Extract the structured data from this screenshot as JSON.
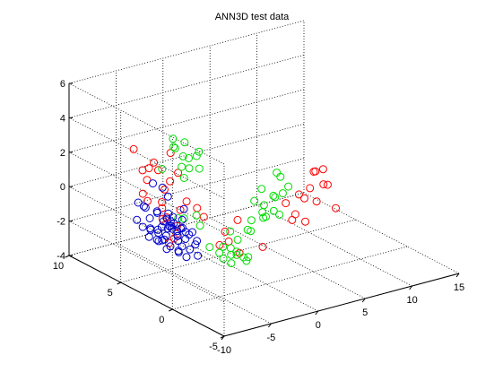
{
  "chart_data": {
    "type": "scatter",
    "title": "ANN3D test data",
    "xlabel": "",
    "ylabel": "",
    "zlabel": "",
    "projection": "3d",
    "grid": true,
    "marker": "open-circle",
    "xlim": [
      -10,
      15
    ],
    "ylim": [
      -5,
      10
    ],
    "zlim": [
      -4,
      6
    ],
    "x_ticks": [
      "-10",
      "-5",
      "0",
      "5",
      "10",
      "15"
    ],
    "y_ticks": [
      "-5",
      "0",
      "5",
      "10"
    ],
    "z_ticks": [
      "-4",
      "-2",
      "0",
      "2",
      "4",
      "6"
    ],
    "series": [
      {
        "color": "#ff0000",
        "points": [
          [
            -5.0,
            5.5,
            -1.2
          ],
          [
            -4.5,
            6.0,
            -0.8
          ],
          [
            -4.0,
            5.0,
            -1.6
          ],
          [
            -3.8,
            6.2,
            -1.5
          ],
          [
            -5.2,
            4.2,
            -1.9
          ],
          [
            -5.5,
            6.5,
            -0.4
          ],
          [
            -6.0,
            6.5,
            0.1
          ],
          [
            -3.0,
            5.6,
            -1.0
          ],
          [
            -3.2,
            3.8,
            -0.3
          ],
          [
            -2.8,
            6.0,
            1.0
          ],
          [
            -5.0,
            7.0,
            0.6
          ],
          [
            -6.5,
            4.2,
            0.4
          ],
          [
            -6.0,
            4.4,
            1.0
          ],
          [
            -6.8,
            5.8,
            1.8
          ],
          [
            -6.2,
            7.2,
            2.5
          ],
          [
            -2.5,
            7.0,
            1.8
          ],
          [
            -4.5,
            6.8,
            1.6
          ],
          [
            -5.2,
            4.6,
            1.3
          ],
          [
            -7.0,
            5.0,
            2.2
          ],
          [
            -3.6,
            7.2,
            0.9
          ],
          [
            -5.8,
            3.4,
            -1.3
          ],
          [
            -4.2,
            3.9,
            0.2
          ],
          [
            -6.4,
            3.6,
            -1.8
          ],
          [
            -1.6,
            4.6,
            -1.3
          ],
          [
            -0.8,
            3.8,
            -2.8
          ],
          [
            0.0,
            4.0,
            -2.2
          ],
          [
            2.0,
            4.6,
            -2.0
          ],
          [
            -0.6,
            3.1,
            -2.4
          ],
          [
            9.0,
            3.6,
            0.1
          ],
          [
            10.0,
            3.6,
            0.1
          ],
          [
            9.6,
            3.2,
            -0.6
          ],
          [
            8.6,
            3.6,
            -0.8
          ],
          [
            8.2,
            2.6,
            -1.2
          ],
          [
            9.8,
            2.2,
            -1.7
          ],
          [
            8.0,
            3.6,
            -1.3
          ],
          [
            7.2,
            3.4,
            -0.9
          ],
          [
            9.4,
            3.8,
            0.0
          ],
          [
            9.6,
            2.8,
            -0.5
          ],
          [
            5.8,
            3.4,
            -1.2
          ],
          [
            6.6,
            3.2,
            -1.9
          ],
          [
            7.0,
            2.6,
            -2.2
          ],
          [
            5.6,
            2.6,
            -1.9
          ],
          [
            0.0,
            2.6,
            -3.0
          ],
          [
            0.6,
            0.9,
            -2.2
          ]
        ]
      },
      {
        "color": "#00dd00",
        "points": [
          [
            -2.0,
            7.0,
            2.0
          ],
          [
            -1.6,
            6.6,
            1.6
          ],
          [
            -1.0,
            6.6,
            1.4
          ],
          [
            -2.4,
            6.8,
            2.2
          ],
          [
            -1.4,
            6.2,
            1.0
          ],
          [
            -2.2,
            6.2,
            1.2
          ],
          [
            -0.6,
            6.2,
            1.6
          ],
          [
            -1.8,
            7.4,
            2.4
          ],
          [
            -3.4,
            7.0,
            1.0
          ],
          [
            -2.6,
            5.6,
            0.8
          ],
          [
            -1.0,
            7.0,
            2.2
          ],
          [
            -1.2,
            5.4,
            1.2
          ],
          [
            -0.8,
            5.8,
            2.0
          ],
          [
            -4.8,
            3.6,
            -0.6
          ],
          [
            -4.2,
            2.6,
            -0.8
          ],
          [
            -5.2,
            3.8,
            -0.6
          ],
          [
            4.4,
            3.0,
            0.9
          ],
          [
            4.8,
            3.0,
            0.6
          ],
          [
            5.2,
            2.6,
            0.1
          ],
          [
            3.6,
            2.6,
            -0.2
          ],
          [
            4.0,
            2.8,
            -0.4
          ],
          [
            2.6,
            2.6,
            -0.6
          ],
          [
            2.8,
            2.6,
            -1.3
          ],
          [
            3.2,
            2.2,
            -0.9
          ],
          [
            2.0,
            2.2,
            -0.8
          ],
          [
            1.8,
            2.8,
            -0.3
          ],
          [
            3.0,
            3.2,
            0.1
          ],
          [
            0.6,
            2.0,
            -1.0
          ],
          [
            1.2,
            2.6,
            -1.9
          ],
          [
            0.2,
            2.0,
            -1.5
          ],
          [
            -1.0,
            2.6,
            -1.6
          ],
          [
            -0.2,
            2.6,
            -2.2
          ],
          [
            3.4,
            3.4,
            -1.7
          ],
          [
            4.6,
            2.6,
            -0.2
          ],
          [
            3.8,
            2.2,
            -1.2
          ],
          [
            -2.6,
            4.4,
            -1.0
          ],
          [
            -3.4,
            2.4,
            -2.1
          ],
          [
            -2.2,
            2.2,
            -2.2
          ],
          [
            -2.0,
            1.6,
            -2.5
          ],
          [
            -1.4,
            1.6,
            -2.6
          ],
          [
            -1.0,
            1.3,
            -2.7
          ],
          [
            -2.6,
            1.8,
            -2.7
          ],
          [
            -1.6,
            2.0,
            -2.3
          ],
          [
            -0.4,
            1.4,
            -2.8
          ],
          [
            -1.2,
            1.8,
            -2.5
          ],
          [
            -2.2,
            1.4,
            -2.9
          ],
          [
            -0.8,
            1.2,
            -2.9
          ],
          [
            -2.8,
            2.0,
            -2.4
          ]
        ]
      },
      {
        "color": "#0000cc",
        "points": [
          [
            -5.0,
            5.0,
            -1.6
          ],
          [
            -4.6,
            4.4,
            -1.9
          ],
          [
            -5.4,
            4.8,
            -1.9
          ],
          [
            -4.2,
            4.8,
            -1.8
          ],
          [
            -5.8,
            4.6,
            -2.0
          ],
          [
            -4.8,
            5.6,
            -1.4
          ],
          [
            -4.0,
            4.2,
            -2.1
          ],
          [
            -5.2,
            5.4,
            -1.6
          ],
          [
            -6.0,
            5.0,
            -1.7
          ],
          [
            -4.4,
            5.2,
            -1.6
          ],
          [
            -5.6,
            4.2,
            -2.3
          ],
          [
            -3.6,
            5.0,
            -1.8
          ],
          [
            -4.8,
            3.8,
            -2.3
          ],
          [
            -6.4,
            4.6,
            -2.0
          ],
          [
            -5.0,
            6.0,
            -1.0
          ],
          [
            -4.2,
            5.8,
            -1.4
          ],
          [
            -6.2,
            5.6,
            -1.6
          ],
          [
            -3.4,
            4.4,
            -2.0
          ],
          [
            -5.4,
            3.6,
            -2.4
          ],
          [
            -4.4,
            3.4,
            -2.4
          ],
          [
            -6.6,
            5.2,
            -1.5
          ],
          [
            -3.8,
            5.8,
            -1.6
          ],
          [
            -5.8,
            6.0,
            -1.2
          ],
          [
            -3.2,
            5.2,
            -1.9
          ],
          [
            -4.6,
            6.4,
            -1.1
          ],
          [
            -6.8,
            4.4,
            -1.8
          ],
          [
            -5.2,
            3.0,
            -2.6
          ],
          [
            -3.0,
            4.0,
            -2.3
          ],
          [
            -4.0,
            3.0,
            -2.7
          ],
          [
            -7.0,
            5.6,
            -1.4
          ],
          [
            -2.8,
            5.6,
            -1.6
          ],
          [
            -5.6,
            6.6,
            -0.8
          ],
          [
            -4.8,
            4.6,
            -1.2
          ],
          [
            -5.0,
            4.0,
            -2.0
          ],
          [
            -4.4,
            4.6,
            -2.0
          ],
          [
            -5.4,
            5.6,
            -1.8
          ],
          [
            -4.0,
            5.4,
            -1.2
          ],
          [
            -6.2,
            4.0,
            -2.3
          ],
          [
            -3.6,
            3.6,
            -2.3
          ],
          [
            -2.6,
            4.8,
            -2.1
          ],
          [
            -3.4,
            6.4,
            -1.4
          ],
          [
            -6.0,
            6.4,
            -0.6
          ],
          [
            -7.2,
            4.8,
            -1.7
          ],
          [
            -5.8,
            3.2,
            -2.3
          ],
          [
            -4.6,
            6.8,
            0.4
          ],
          [
            -3.0,
            6.8,
            -0.6
          ],
          [
            -6.6,
            6.4,
            -0.3
          ],
          [
            -3.8,
            6.6,
            0.1
          ],
          [
            -2.4,
            5.8,
            -1.1
          ],
          [
            -7.4,
            5.8,
            -1.0
          ],
          [
            -4.8,
            5.0,
            -1.5
          ],
          [
            -5.2,
            4.4,
            -1.4
          ],
          [
            -4.2,
            4.0,
            -1.6
          ],
          [
            -5.6,
            5.0,
            -2.2
          ]
        ]
      }
    ]
  }
}
